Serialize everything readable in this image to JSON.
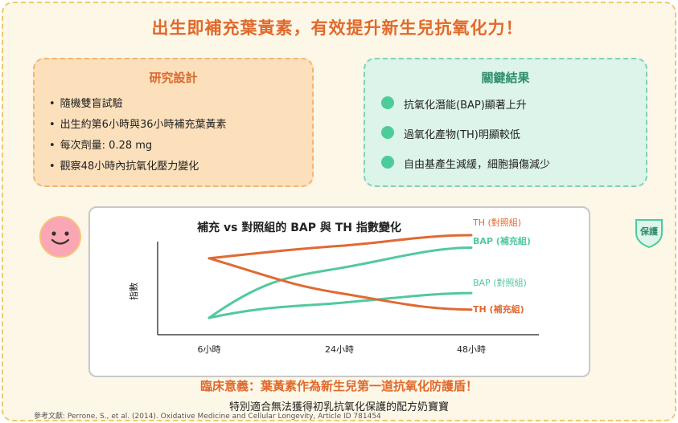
{
  "title": "出生即補充葉黃素，有效提升新生兒抗氧化力！",
  "design": {
    "title": "研究設計",
    "items": [
      "隨機雙盲試驗",
      "出生約第6小時與36小時補充葉黃素",
      "每次劑量: 0.28 mg",
      "觀察48小時內抗氧化壓力變化"
    ]
  },
  "results": {
    "title": "關鍵結果",
    "items": [
      "抗氧化潛能(BAP)顯著上升",
      "過氧化產物(TH)明顯較低",
      "自由基產生減緩，細胞損傷減少"
    ]
  },
  "badge": "保護",
  "chart_data": {
    "type": "line",
    "title": "補充 vs 對照組的 BAP 與 TH 指數變化",
    "ylabel": "指數",
    "xlabel": "",
    "categories": [
      "6小時",
      "24小時",
      "48小時"
    ],
    "series": [
      {
        "name": "TH (對照組)",
        "color": "#e06a33",
        "values": [
          0.72,
          0.87,
          1.0
        ]
      },
      {
        "name": "BAP (補充組)",
        "color": "#52c99e",
        "values": [
          0.0,
          0.6,
          0.85
        ]
      },
      {
        "name": "BAP (對照組)",
        "color": "#52c99e",
        "values": [
          0.0,
          0.18,
          0.3
        ]
      },
      {
        "name": "TH (補充組)",
        "color": "#e06a33",
        "values": [
          0.72,
          0.3,
          0.1
        ]
      }
    ],
    "grid": false
  },
  "meaning": "臨床意義：葉黃素作為新生兒第一道抗氧化防護盾！",
  "note": "特別適合無法獲得初乳抗氧化保護的配方奶寶寶",
  "reference": "參考文獻: Perrone, S., et al. (2014). Oxidative Medicine and Cellular Longevity, Article ID 781454"
}
